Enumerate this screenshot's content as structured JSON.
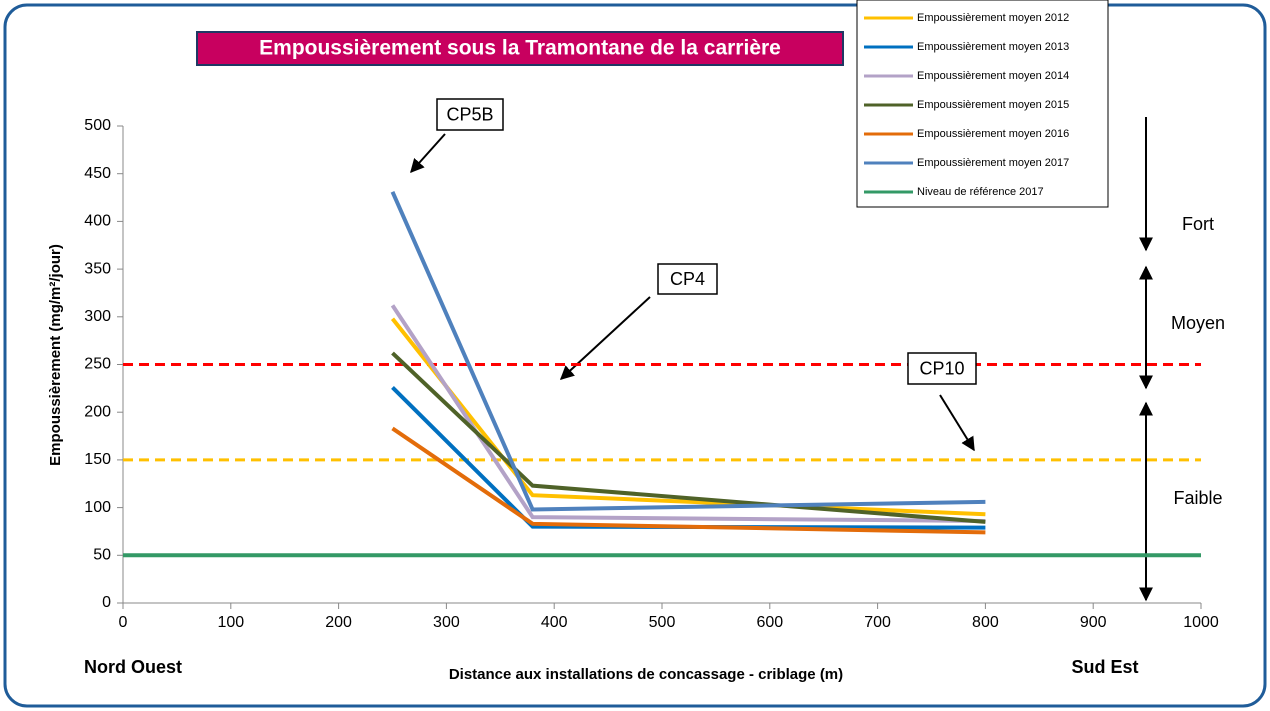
{
  "chart_data": {
    "type": "line",
    "title": "Empoussièrement sous la Tramontane de la carrière",
    "xlabel": "Distance aux installations de concassage - criblage (m)",
    "ylabel": "Empoussièrement  (mg/m²/jour)",
    "xlim": [
      0,
      1000
    ],
    "xticks": [
      0,
      100,
      200,
      300,
      400,
      500,
      600,
      700,
      800,
      900,
      1000
    ],
    "ylim": [
      0,
      500
    ],
    "yticks": [
      0,
      50,
      100,
      150,
      200,
      250,
      300,
      350,
      400,
      450,
      500
    ],
    "series": [
      {
        "name": "Empoussièrement moyen 2012",
        "color": "#ffc000",
        "x": [
          250,
          380,
          800
        ],
        "values": [
          298,
          113,
          93
        ]
      },
      {
        "name": "Empoussièrement moyen 2013",
        "color": "#0070c0",
        "x": [
          250,
          380,
          800
        ],
        "values": [
          226,
          80,
          79
        ]
      },
      {
        "name": "Empoussièrement moyen 2014",
        "color": "#b3a2c7",
        "x": [
          250,
          380,
          800
        ],
        "values": [
          312,
          90,
          86
        ]
      },
      {
        "name": "Empoussièrement moyen 2015",
        "color": "#4f6228",
        "x": [
          250,
          380,
          800
        ],
        "values": [
          262,
          123,
          85
        ]
      },
      {
        "name": "Empoussièrement moyen 2016",
        "color": "#e36c0a",
        "x": [
          250,
          380,
          800
        ],
        "values": [
          183,
          83,
          74
        ]
      },
      {
        "name": "Empoussièrement moyen 2017",
        "color": "#4f81bd",
        "x": [
          250,
          380,
          800
        ],
        "values": [
          431,
          98,
          106
        ]
      },
      {
        "name": "Niveau de référence 2017",
        "color": "#339966",
        "x": [
          0,
          1000
        ],
        "values": [
          50,
          50
        ]
      }
    ],
    "thresholds": [
      {
        "value": 250,
        "color": "#ff0000"
      },
      {
        "value": 150,
        "color": "#ffc000"
      }
    ],
    "annotations": [
      "CP5B",
      "CP4",
      "CP10"
    ],
    "zones": [
      "Fort",
      "Moyen",
      "Faible"
    ],
    "left_label": "Nord Ouest",
    "right_label": "Sud Est"
  }
}
